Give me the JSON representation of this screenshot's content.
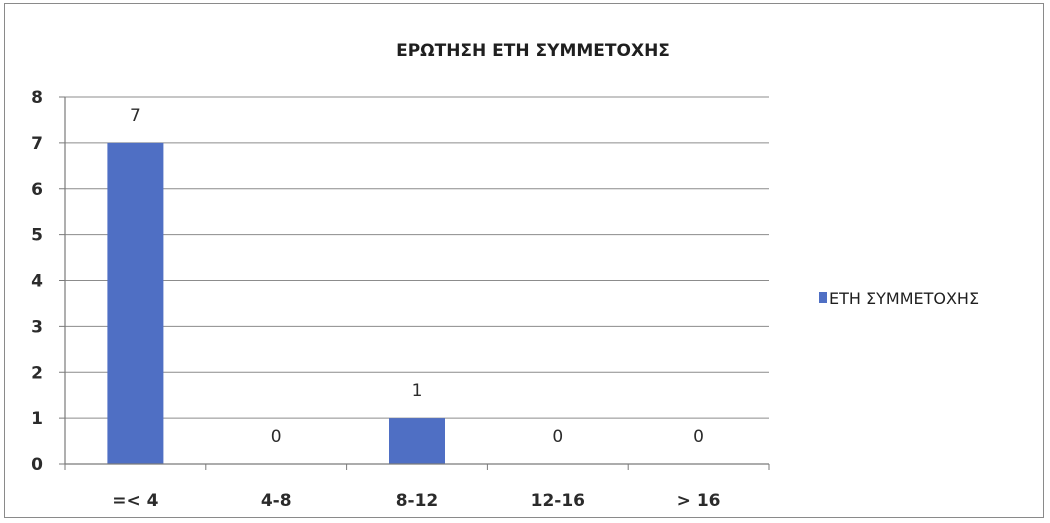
{
  "chart_data": {
    "type": "bar",
    "title": "ΕΡΩΤΗΣΗ ΕΤΗ ΣΥΜΜΕΤΟΧΗΣ",
    "categories": [
      "=< 4",
      "4-8",
      "8-12",
      "12-16",
      "> 16"
    ],
    "series": [
      {
        "name": "ΕΤΗ ΣΥΜΜΕΤΟΧΗΣ",
        "values": [
          7,
          0,
          1,
          0,
          0
        ],
        "color": "#4f6fc4"
      }
    ],
    "xlabel": "",
    "ylabel": "",
    "ylim": [
      0,
      8
    ],
    "yticks": [
      0,
      1,
      2,
      3,
      4,
      5,
      6,
      7,
      8
    ],
    "grid": true,
    "data_labels": true,
    "legend_position": "right"
  }
}
